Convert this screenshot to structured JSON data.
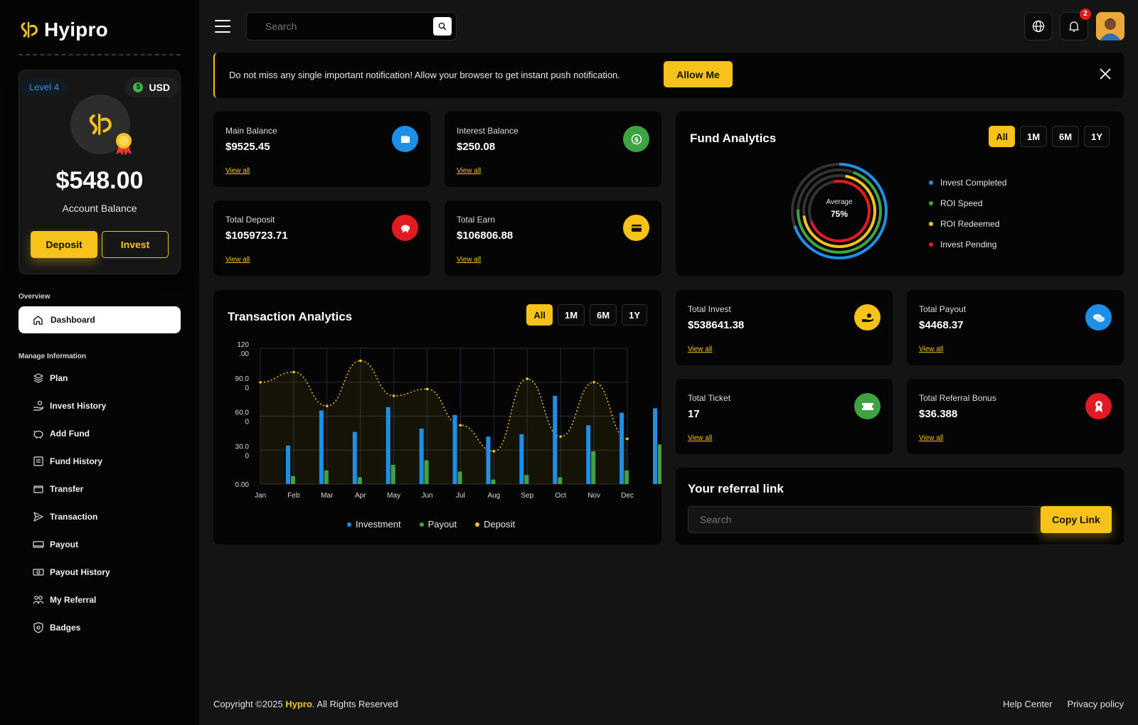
{
  "brand": {
    "name": "Hyipro",
    "accent": "#f7c21a"
  },
  "account": {
    "level": "Level 4",
    "currency": "USD",
    "balance": "$548.00",
    "balance_label": "Account Balance",
    "deposit_label": "Deposit",
    "invest_label": "Invest"
  },
  "sidebar": {
    "overview_heading": "Overview",
    "dashboard_label": "Dashboard",
    "manage_heading": "Manage Information",
    "items": [
      {
        "label": "Plan",
        "icon": "layers-icon"
      },
      {
        "label": "Invest History",
        "icon": "hand-coins-icon"
      },
      {
        "label": "Add Fund",
        "icon": "piggy-bank-icon"
      },
      {
        "label": "Fund History",
        "icon": "receipt-icon"
      },
      {
        "label": "Transfer",
        "icon": "wallet-icon"
      },
      {
        "label": "Transaction",
        "icon": "send-icon"
      },
      {
        "label": "Payout",
        "icon": "cash-icon"
      },
      {
        "label": "Payout History",
        "icon": "banknote-icon"
      },
      {
        "label": "My Referral",
        "icon": "users-icon"
      },
      {
        "label": "Badges",
        "icon": "shield-badge-icon"
      }
    ]
  },
  "topbar": {
    "search_placeholder": "Search",
    "notification_count": "2"
  },
  "notice": {
    "text": "Do not miss any single important notification! Allow your browser to get instant push notification.",
    "button_label": "Allow Me"
  },
  "stats": {
    "main_balance": {
      "label": "Main Balance",
      "value": "$9525.45",
      "link": "View all",
      "color": "#1e8fe6"
    },
    "interest_balance": {
      "label": "Interest Balance",
      "value": "$250.08",
      "link": "View all",
      "color": "#3fa344"
    },
    "total_deposit": {
      "label": "Total Deposit",
      "value": "$1059723.71",
      "link": "View all",
      "color": "#e01b24"
    },
    "total_earn": {
      "label": "Total Earn",
      "value": "$106806.88",
      "link": "View all",
      "color": "#f7c21a"
    },
    "total_invest": {
      "label": "Total Invest",
      "value": "$538641.38",
      "link": "View all",
      "color": "#f7c21a"
    },
    "total_payout": {
      "label": "Total Payout",
      "value": "$4468.37",
      "link": "View all",
      "color": "#1e8fe6"
    },
    "total_ticket": {
      "label": "Total Ticket",
      "value": "17",
      "link": "View all",
      "color": "#3fa344"
    },
    "total_referral": {
      "label": "Total Referral Bonus",
      "value": "$36.388",
      "link": "View all",
      "color": "#e01b24"
    }
  },
  "fund_analytics": {
    "title": "Fund Analytics",
    "filters": [
      "All",
      "1M",
      "6M",
      "1Y"
    ],
    "center_label": "Average",
    "center_value": "75%",
    "legend": [
      {
        "label": "Invest Completed",
        "color": "#1e8fe6"
      },
      {
        "label": "ROI Speed",
        "color": "#3fa344"
      },
      {
        "label": "ROI Redeemed",
        "color": "#f7c21a"
      },
      {
        "label": "Invest Pending",
        "color": "#e01b24"
      }
    ]
  },
  "transaction_analytics": {
    "title": "Transaction Analytics",
    "filters": [
      "All",
      "1M",
      "6M",
      "1Y"
    ]
  },
  "chart_data": {
    "type": "bar",
    "categories": [
      "Jan",
      "Feb",
      "Mar",
      "Apr",
      "May",
      "Jun",
      "Jul",
      "Aug",
      "Sep",
      "Oct",
      "Nov",
      "Dec"
    ],
    "y_ticks": [
      "120\n.00",
      "90.0\n0",
      "60.0\n0",
      "30.0\n0",
      "0.00"
    ],
    "ylim": [
      0,
      120
    ],
    "series": [
      {
        "name": "Investment",
        "type": "bar",
        "color": "#1e8fe6",
        "values": [
          34,
          65,
          46,
          68,
          49,
          61,
          42,
          44,
          78,
          52,
          63,
          67
        ]
      },
      {
        "name": "Payout",
        "type": "bar",
        "color": "#3fa344",
        "values": [
          7,
          12,
          6,
          17,
          21,
          11,
          4,
          8,
          6,
          29,
          12,
          35
        ]
      },
      {
        "name": "Deposit",
        "type": "line",
        "color": "#f7c21a",
        "values": [
          90,
          99,
          69,
          109,
          78,
          84,
          52,
          29,
          93,
          42,
          90,
          40
        ]
      }
    ],
    "grid": true,
    "legend_position": "bottom"
  },
  "referral": {
    "title": "Your referral link",
    "placeholder": "Search",
    "button_label": "Copy Link"
  },
  "footer": {
    "copyright_prefix": "Copyright ©2025 ",
    "brand": "Hypro",
    "copyright_suffix": ". All Rights Reserved",
    "links": [
      "Help Center",
      "Privacy policy"
    ]
  }
}
